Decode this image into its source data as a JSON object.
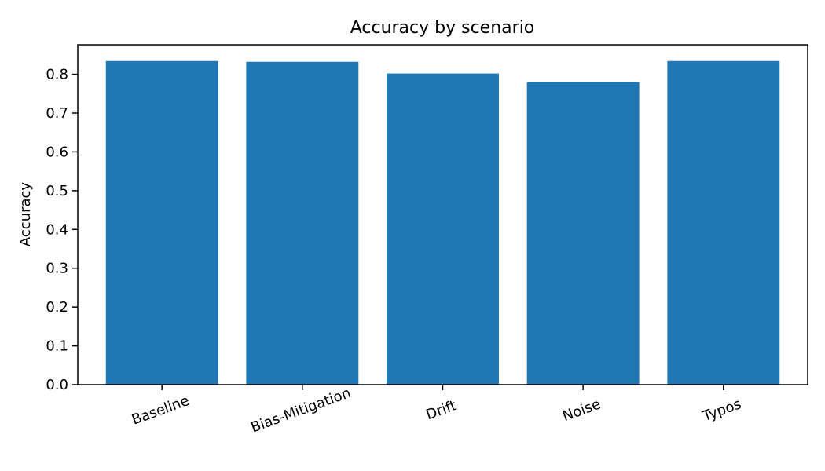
{
  "chart_data": {
    "type": "bar",
    "title": "Accuracy by scenario",
    "xlabel": "",
    "ylabel": "Accuracy",
    "categories": [
      "Baseline",
      "Bias-Mitigation",
      "Drift",
      "Noise",
      "Typos"
    ],
    "values": [
      0.834,
      0.832,
      0.802,
      0.78,
      0.834
    ],
    "ylim": [
      0,
      0.876
    ],
    "yticks": [
      0.0,
      0.1,
      0.2,
      0.3,
      0.4,
      0.5,
      0.6,
      0.7,
      0.8
    ],
    "ytick_labels": [
      "0.0",
      "0.1",
      "0.2",
      "0.3",
      "0.4",
      "0.5",
      "0.6",
      "0.7",
      "0.8"
    ],
    "xtick_rotation": -20,
    "grid": false,
    "colors": {
      "bar": "#1f77b4",
      "axis": "#000000",
      "background": "#ffffff"
    }
  }
}
